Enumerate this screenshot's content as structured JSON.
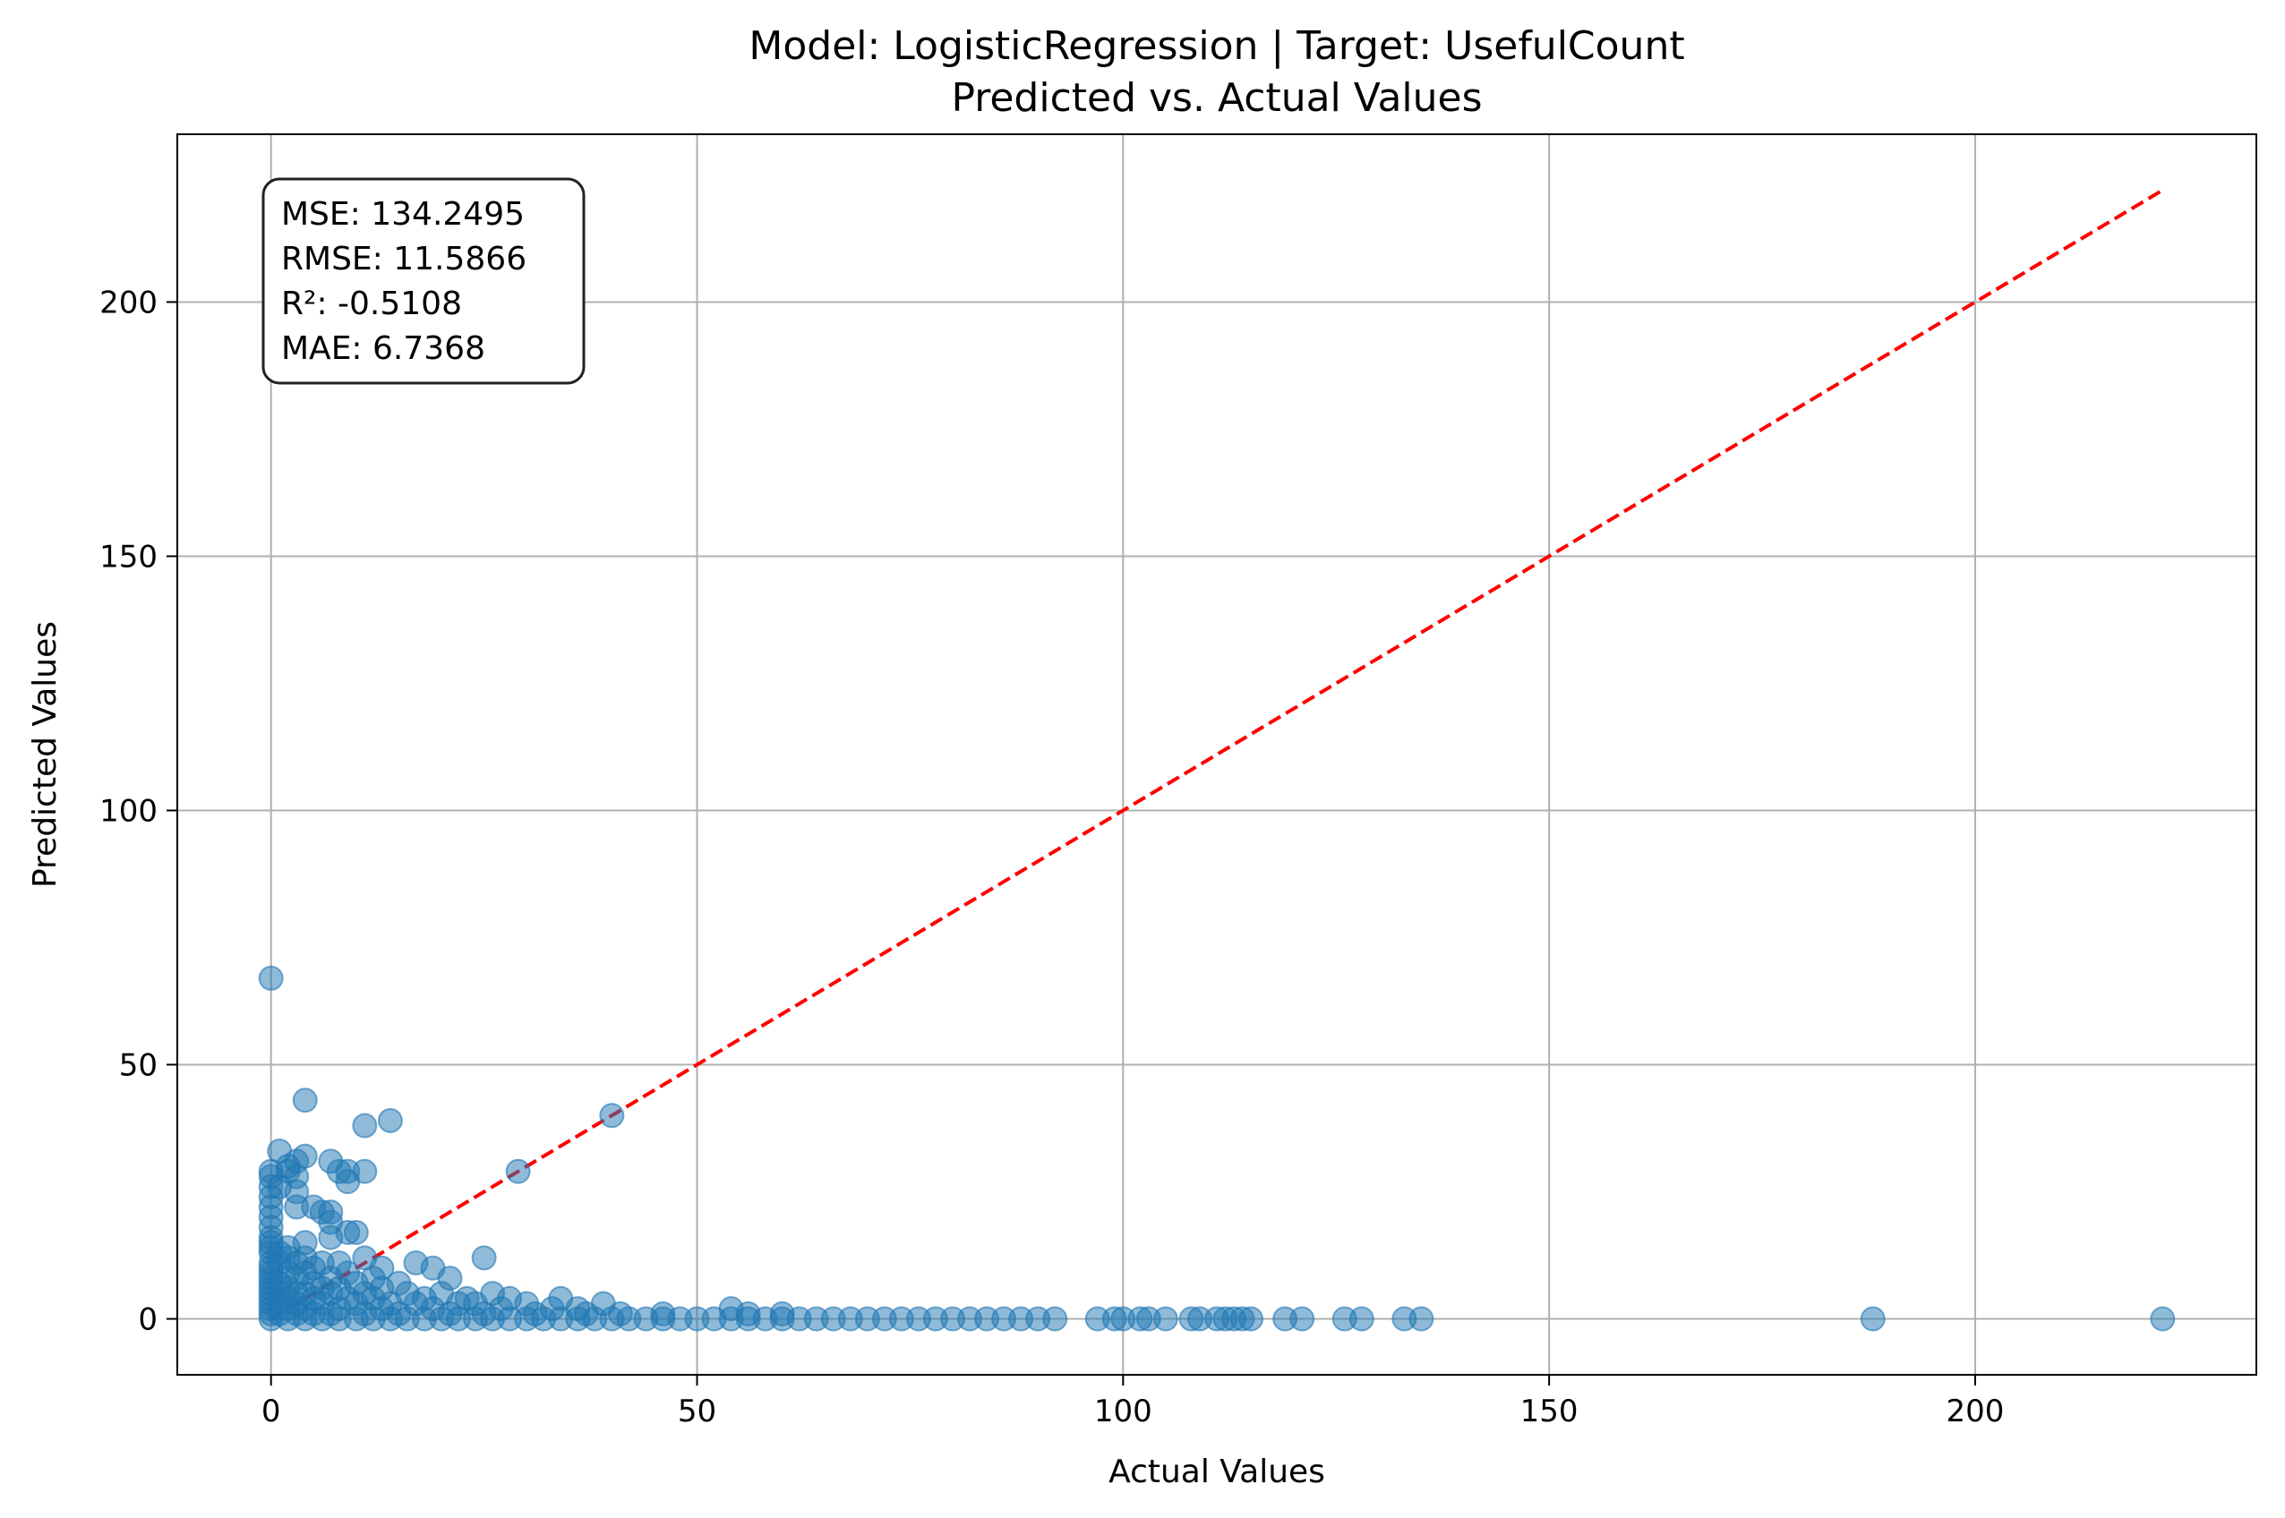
{
  "chart_data": {
    "type": "scatter",
    "title": "Model: LogisticRegression | Target: UsefulCount",
    "subtitle": "Predicted vs. Actual Values",
    "xlabel": "Actual Values",
    "ylabel": "Predicted Values",
    "xlim": [
      -11,
      233
    ],
    "ylim": [
      -11,
      233
    ],
    "xticks": [
      0,
      50,
      100,
      150,
      200
    ],
    "yticks": [
      0,
      50,
      100,
      150,
      200
    ],
    "grid": true,
    "point_color": "#1f77b4",
    "reference_line": {
      "x": [
        0,
        222
      ],
      "y": [
        0,
        222
      ],
      "color": "#ff0000",
      "style": "dashed"
    },
    "stats_lines": [
      "MSE: 134.2495",
      "RMSE: 11.5866",
      "R²: -0.5108",
      "MAE: 6.7368"
    ],
    "series": [
      {
        "points": [
          [
            0,
            67
          ],
          [
            4,
            43
          ],
          [
            14,
            39
          ],
          [
            11,
            38
          ],
          [
            40,
            40
          ],
          [
            1,
            33
          ],
          [
            4,
            32
          ],
          [
            7,
            31
          ],
          [
            3,
            31
          ],
          [
            2,
            30
          ],
          [
            0,
            29
          ],
          [
            2,
            29
          ],
          [
            8,
            29
          ],
          [
            9,
            29
          ],
          [
            11,
            29
          ],
          [
            29,
            29
          ],
          [
            0,
            28
          ],
          [
            3,
            28
          ],
          [
            9,
            27
          ],
          [
            0,
            26
          ],
          [
            1,
            26
          ],
          [
            3,
            25
          ],
          [
            0,
            24
          ],
          [
            5,
            22
          ],
          [
            0,
            22
          ],
          [
            3,
            22
          ],
          [
            6,
            21
          ],
          [
            7,
            21
          ],
          [
            0,
            20
          ],
          [
            7,
            19
          ],
          [
            0,
            18
          ],
          [
            9,
            17
          ],
          [
            10,
            17
          ],
          [
            0,
            16
          ],
          [
            7,
            16
          ],
          [
            0,
            15
          ],
          [
            4,
            15
          ],
          [
            0,
            14
          ],
          [
            2,
            14
          ],
          [
            0,
            13
          ],
          [
            1,
            13
          ],
          [
            2,
            12
          ],
          [
            4,
            12
          ],
          [
            11,
            12
          ],
          [
            25,
            12
          ],
          [
            0,
            11
          ],
          [
            1,
            11
          ],
          [
            3,
            11
          ],
          [
            6,
            11
          ],
          [
            8,
            11
          ],
          [
            17,
            11
          ],
          [
            0,
            10
          ],
          [
            5,
            10
          ],
          [
            13,
            10
          ],
          [
            19,
            10
          ],
          [
            0,
            9
          ],
          [
            2,
            9
          ],
          [
            4,
            9
          ],
          [
            9,
            9
          ],
          [
            0,
            8
          ],
          [
            3,
            8
          ],
          [
            7,
            8
          ],
          [
            12,
            8
          ],
          [
            21,
            8
          ],
          [
            0,
            7
          ],
          [
            1,
            7
          ],
          [
            5,
            7
          ],
          [
            10,
            7
          ],
          [
            15,
            7
          ],
          [
            0,
            6
          ],
          [
            2,
            6
          ],
          [
            6,
            6
          ],
          [
            8,
            6
          ],
          [
            13,
            6
          ],
          [
            0,
            5
          ],
          [
            1,
            5
          ],
          [
            3,
            5
          ],
          [
            4,
            5
          ],
          [
            7,
            5
          ],
          [
            11,
            5
          ],
          [
            16,
            5
          ],
          [
            20,
            5
          ],
          [
            26,
            5
          ],
          [
            0,
            4
          ],
          [
            2,
            4
          ],
          [
            5,
            4
          ],
          [
            9,
            4
          ],
          [
            12,
            4
          ],
          [
            18,
            4
          ],
          [
            23,
            4
          ],
          [
            28,
            4
          ],
          [
            34,
            4
          ],
          [
            0,
            3
          ],
          [
            1,
            3
          ],
          [
            3,
            3
          ],
          [
            6,
            3
          ],
          [
            10,
            3
          ],
          [
            14,
            3
          ],
          [
            17,
            3
          ],
          [
            22,
            3
          ],
          [
            24,
            3
          ],
          [
            30,
            3
          ],
          [
            39,
            3
          ],
          [
            0,
            2
          ],
          [
            2,
            2
          ],
          [
            4,
            2
          ],
          [
            8,
            2
          ],
          [
            13,
            2
          ],
          [
            19,
            2
          ],
          [
            27,
            2
          ],
          [
            33,
            2
          ],
          [
            36,
            2
          ],
          [
            54,
            2
          ],
          [
            0,
            1
          ],
          [
            1,
            1
          ],
          [
            3,
            1
          ],
          [
            5,
            1
          ],
          [
            7,
            1
          ],
          [
            11,
            1
          ],
          [
            15,
            1
          ],
          [
            21,
            1
          ],
          [
            25,
            1
          ],
          [
            31,
            1
          ],
          [
            37,
            1
          ],
          [
            41,
            1
          ],
          [
            46,
            1
          ],
          [
            56,
            1
          ],
          [
            60,
            1
          ],
          [
            0,
            0
          ],
          [
            2,
            0
          ],
          [
            4,
            0
          ],
          [
            6,
            0
          ],
          [
            8,
            0
          ],
          [
            10,
            0
          ],
          [
            12,
            0
          ],
          [
            14,
            0
          ],
          [
            16,
            0
          ],
          [
            18,
            0
          ],
          [
            20,
            0
          ],
          [
            22,
            0
          ],
          [
            24,
            0
          ],
          [
            26,
            0
          ],
          [
            28,
            0
          ],
          [
            30,
            0
          ],
          [
            32,
            0
          ],
          [
            34,
            0
          ],
          [
            36,
            0
          ],
          [
            38,
            0
          ],
          [
            40,
            0
          ],
          [
            42,
            0
          ],
          [
            44,
            0
          ],
          [
            46,
            0
          ],
          [
            48,
            0
          ],
          [
            50,
            0
          ],
          [
            52,
            0
          ],
          [
            54,
            0
          ],
          [
            56,
            0
          ],
          [
            58,
            0
          ],
          [
            60,
            0
          ],
          [
            62,
            0
          ],
          [
            64,
            0
          ],
          [
            66,
            0
          ],
          [
            68,
            0
          ],
          [
            70,
            0
          ],
          [
            72,
            0
          ],
          [
            74,
            0
          ],
          [
            76,
            0
          ],
          [
            78,
            0
          ],
          [
            80,
            0
          ],
          [
            82,
            0
          ],
          [
            84,
            0
          ],
          [
            86,
            0
          ],
          [
            88,
            0
          ],
          [
            90,
            0
          ],
          [
            92,
            0
          ],
          [
            97,
            0
          ],
          [
            99,
            0
          ],
          [
            100,
            0
          ],
          [
            102,
            0
          ],
          [
            103,
            0
          ],
          [
            105,
            0
          ],
          [
            108,
            0
          ],
          [
            109,
            0
          ],
          [
            111,
            0
          ],
          [
            112,
            0
          ],
          [
            113,
            0
          ],
          [
            114,
            0
          ],
          [
            115,
            0
          ],
          [
            119,
            0
          ],
          [
            121,
            0
          ],
          [
            126,
            0
          ],
          [
            128,
            0
          ],
          [
            133,
            0
          ],
          [
            135,
            0
          ],
          [
            188,
            0
          ],
          [
            222,
            0
          ]
        ]
      }
    ]
  }
}
